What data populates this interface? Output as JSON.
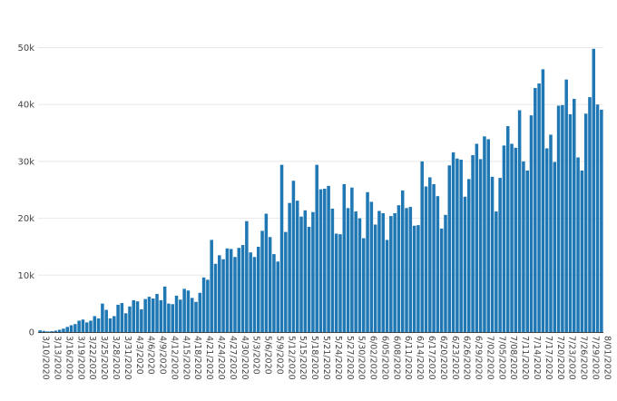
{
  "chart_data": {
    "type": "bar",
    "title": "",
    "xlabel": "",
    "ylabel": "",
    "ylim": [
      0,
      52000
    ],
    "grid": true,
    "bar_color": "#1f77b4",
    "grid_color": "#e8e8e8",
    "axis_color": "#444444",
    "yticks": [
      {
        "value": 0,
        "label": "0"
      },
      {
        "value": 10000,
        "label": "10k"
      },
      {
        "value": 20000,
        "label": "20k"
      },
      {
        "value": 30000,
        "label": "30k"
      },
      {
        "value": 40000,
        "label": "40k"
      },
      {
        "value": 50000,
        "label": "50k"
      }
    ],
    "xtick_labels": [
      "3/10/2020",
      "3/13/2020",
      "3/16/2020",
      "3/19/2020",
      "3/22/2020",
      "3/25/2020",
      "3/28/2020",
      "3/31/2020",
      "4/3/2020",
      "4/6/2020",
      "4/9/2020",
      "4/12/2020",
      "4/15/2020",
      "4/18/2020",
      "4/21/2020",
      "4/24/2020",
      "4/27/2020",
      "4/30/2020",
      "5/3/2020",
      "5/6/2020",
      "5/9/2020",
      "5/12/2020",
      "5/15/2020",
      "5/18/2020",
      "5/21/2020",
      "5/24/2020",
      "5/27/2020",
      "5/30/2020",
      "6/02/2020",
      "6/05/2020",
      "6/08/2020",
      "6/11/2020",
      "6/14/2020",
      "6/17/2020",
      "6/20/2020",
      "6/23/2020",
      "6/26/2020",
      "6/29/2020",
      "7/02/2020",
      "7/05/2020",
      "7/08/2020",
      "7/11/2020",
      "7/14/2020",
      "7/17/2020",
      "7/20/2020",
      "7/23/2020",
      "7/26/2020",
      "7/29/2020",
      "8/01/2020"
    ],
    "values": [
      300,
      200,
      100,
      150,
      250,
      400,
      600,
      900,
      1200,
      1400,
      2000,
      2200,
      1700,
      2000,
      2800,
      2400,
      5000,
      3900,
      2400,
      2800,
      4800,
      5100,
      3300,
      4500,
      5600,
      5400,
      4000,
      5800,
      6200,
      5900,
      6700,
      5600,
      8000,
      5000,
      4900,
      6400,
      5700,
      7600,
      7300,
      6000,
      5300,
      6900,
      9600,
      9200,
      16200,
      12000,
      13500,
      12800,
      14700,
      14600,
      13200,
      14800,
      15300,
      19500,
      14000,
      13200,
      15000,
      17800,
      20800,
      16700,
      13700,
      12400,
      29400,
      17600,
      22700,
      26600,
      23100,
      20300,
      21400,
      18500,
      21100,
      29400,
      25100,
      25200,
      25700,
      21700,
      17300,
      17200,
      26000,
      21800,
      25400,
      21200,
      20000,
      16500,
      24600,
      22900,
      18900,
      21300,
      20900,
      16200,
      20400,
      20900,
      22300,
      24900,
      21800,
      22000,
      18700,
      18800,
      30000,
      25600,
      27200,
      26000,
      23900,
      18200,
      20600,
      29300,
      31600,
      30500,
      30300,
      23800,
      26900,
      31100,
      33100,
      30400,
      34400,
      33900,
      27300,
      21200,
      27100,
      32800,
      36200,
      33100,
      32400,
      39000,
      30000,
      28400,
      38100,
      42900,
      43700,
      46200,
      32300,
      34700,
      29900,
      39800,
      39900,
      44400,
      38300,
      41000,
      30700,
      28400,
      38400,
      41300,
      49800,
      40000,
      39100
    ]
  }
}
